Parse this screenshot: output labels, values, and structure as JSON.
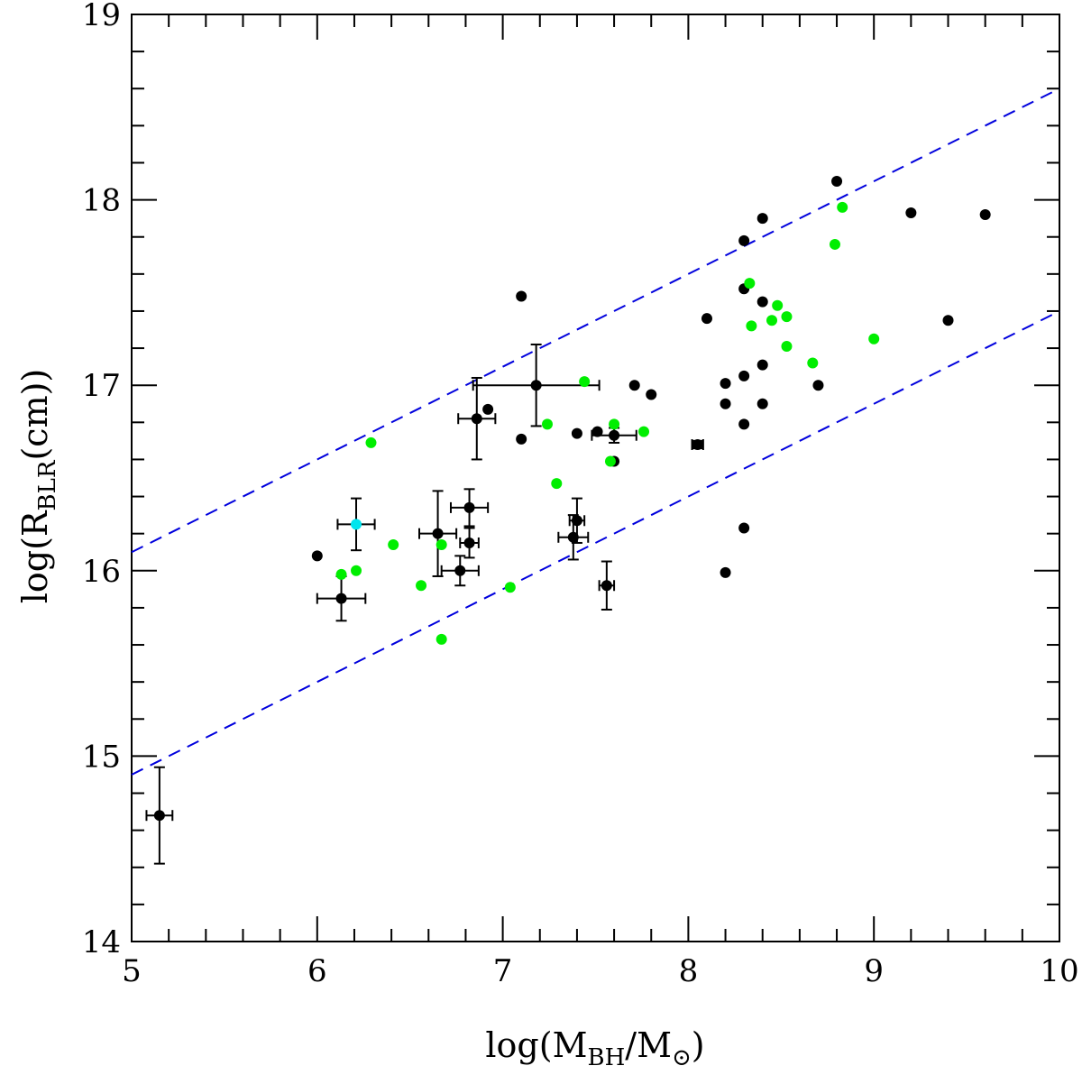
{
  "chart_data": {
    "type": "scatter",
    "title": "",
    "xlabel": {
      "prefix": "log(M",
      "sub1": "BH",
      "mid": "/M",
      "sub2": "⊙",
      "suffix": ")"
    },
    "ylabel": {
      "prefix": "log(R",
      "sub": "BLR",
      "suffix": "(cm))"
    },
    "xlim": [
      5,
      10
    ],
    "ylim": [
      14,
      19
    ],
    "x_ticks": [
      "5",
      "6",
      "7",
      "8",
      "9",
      "10"
    ],
    "y_ticks": [
      "14",
      "15",
      "16",
      "17",
      "18",
      "19"
    ],
    "grid": false,
    "colors": {
      "black": "#000000",
      "green": "#00ee00",
      "cyan": "#00e5ee",
      "line": "#0000dd"
    },
    "lines": [
      {
        "name": "upper-bound",
        "style": "dashed",
        "x": [
          5,
          10
        ],
        "y": [
          16.1,
          18.6
        ]
      },
      {
        "name": "lower-bound",
        "style": "dashed",
        "x": [
          5,
          10
        ],
        "y": [
          14.9,
          17.4
        ]
      }
    ],
    "series": [
      {
        "name": "black",
        "color": "#000000",
        "points": [
          [
            5.15,
            14.68
          ],
          [
            6.0,
            16.08
          ],
          [
            6.13,
            15.85
          ],
          [
            6.65,
            16.2
          ],
          [
            6.77,
            16.0
          ],
          [
            6.82,
            16.34
          ],
          [
            6.82,
            16.15
          ],
          [
            6.86,
            16.82
          ],
          [
            6.92,
            16.87
          ],
          [
            7.1,
            17.48
          ],
          [
            7.1,
            16.71
          ],
          [
            7.18,
            17.0
          ],
          [
            7.38,
            16.18
          ],
          [
            7.4,
            16.27
          ],
          [
            7.4,
            16.74
          ],
          [
            7.51,
            16.75
          ],
          [
            7.56,
            15.92
          ],
          [
            7.6,
            16.73
          ],
          [
            7.6,
            16.59
          ],
          [
            7.71,
            17.0
          ],
          [
            7.8,
            16.95
          ],
          [
            8.05,
            16.68
          ],
          [
            8.1,
            17.36
          ],
          [
            8.2,
            17.01
          ],
          [
            8.2,
            16.9
          ],
          [
            8.2,
            15.99
          ],
          [
            8.3,
            17.78
          ],
          [
            8.3,
            17.52
          ],
          [
            8.3,
            17.05
          ],
          [
            8.3,
            16.79
          ],
          [
            8.3,
            16.23
          ],
          [
            8.4,
            17.9
          ],
          [
            8.4,
            17.45
          ],
          [
            8.4,
            17.11
          ],
          [
            8.4,
            16.9
          ],
          [
            8.7,
            17.0
          ],
          [
            8.8,
            18.1
          ],
          [
            9.2,
            17.93
          ],
          [
            9.4,
            17.35
          ],
          [
            9.6,
            17.92
          ]
        ],
        "errors": [
          {
            "i": 0,
            "xerr": 0.07,
            "yerr": 0.26
          },
          {
            "i": 2,
            "xerr": 0.13,
            "yerr": 0.12
          },
          {
            "i": 3,
            "xerr": 0.1,
            "yerr": 0.23
          },
          {
            "i": 4,
            "xerr": 0.1,
            "yerr": 0.08
          },
          {
            "i": 5,
            "xerr": 0.1,
            "yerr": 0.1
          },
          {
            "i": 6,
            "xerr": 0.05,
            "yerr": 0.08
          },
          {
            "i": 7,
            "xerr": 0.1,
            "yerr": 0.22
          },
          {
            "i": 11,
            "xerr": 0.34,
            "yerr": 0.22
          },
          {
            "i": 12,
            "xerr": 0.08,
            "yerr": 0.12
          },
          {
            "i": 13,
            "xerr": 0.04,
            "yerr": 0.12
          },
          {
            "i": 16,
            "xerr": 0.04,
            "yerr": 0.13
          },
          {
            "i": 17,
            "xerr": 0.12,
            "yerr": 0.04
          },
          {
            "i": 21,
            "xerr": 0.03,
            "yerr": 0.02
          }
        ]
      },
      {
        "name": "green",
        "color": "#00ee00",
        "points": [
          [
            6.13,
            15.98
          ],
          [
            6.21,
            16.0
          ],
          [
            6.29,
            16.69
          ],
          [
            6.41,
            16.14
          ],
          [
            6.56,
            15.92
          ],
          [
            6.67,
            16.14
          ],
          [
            6.67,
            15.63
          ],
          [
            7.04,
            15.91
          ],
          [
            7.24,
            16.79
          ],
          [
            7.29,
            16.47
          ],
          [
            7.44,
            17.02
          ],
          [
            7.58,
            16.59
          ],
          [
            7.6,
            16.79
          ],
          [
            7.76,
            16.75
          ],
          [
            8.33,
            17.55
          ],
          [
            8.34,
            17.32
          ],
          [
            8.45,
            17.35
          ],
          [
            8.48,
            17.43
          ],
          [
            8.53,
            17.37
          ],
          [
            8.53,
            17.21
          ],
          [
            8.67,
            17.12
          ],
          [
            8.79,
            17.76
          ],
          [
            8.83,
            17.96
          ],
          [
            9.0,
            17.25
          ]
        ]
      },
      {
        "name": "cyan",
        "color": "#00e5ee",
        "points": [
          [
            6.21,
            16.25
          ]
        ],
        "errors": [
          {
            "i": 0,
            "xerr": 0.1,
            "yerr": 0.14
          }
        ]
      }
    ]
  }
}
